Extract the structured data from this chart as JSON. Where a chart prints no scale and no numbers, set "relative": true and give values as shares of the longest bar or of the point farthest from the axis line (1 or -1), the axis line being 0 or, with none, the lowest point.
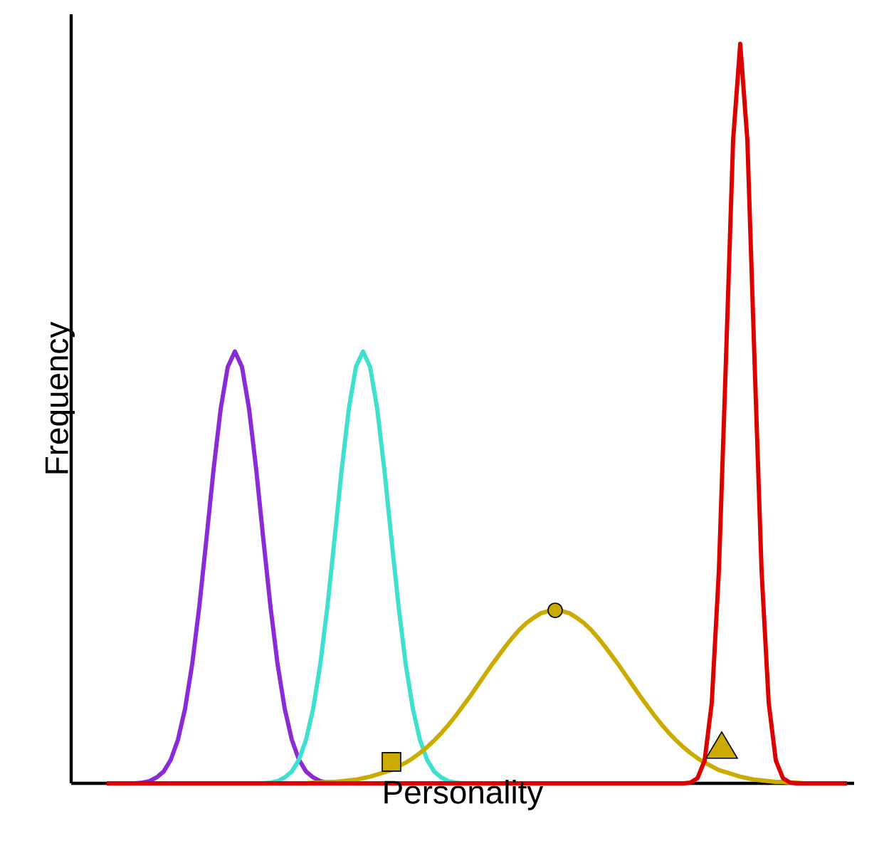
{
  "chart_data": {
    "type": "line",
    "relative": true,
    "xlabel": "Personality",
    "ylabel": "Frequency",
    "marker": "none",
    "categories": [
      null,
      null,
      null,
      null,
      null,
      null,
      null,
      null,
      null,
      null,
      null,
      null,
      null,
      null,
      null,
      null,
      null,
      null,
      null,
      null,
      null,
      null,
      null,
      null,
      null,
      null,
      null,
      null,
      null,
      null,
      null,
      null,
      null,
      null,
      null,
      null,
      null,
      null,
      null,
      null,
      null,
      null,
      null,
      null,
      null,
      null,
      null,
      null,
      null,
      null,
      null,
      null,
      null,
      null,
      null,
      null,
      null,
      null,
      null,
      null,
      null,
      null,
      null,
      null,
      null,
      null,
      null,
      null,
      null,
      null,
      null,
      null,
      null,
      null,
      null,
      null,
      null,
      null,
      null,
      null,
      null,
      null,
      null,
      null,
      null,
      null,
      null,
      null,
      null,
      null,
      null,
      null,
      null,
      null,
      null,
      null,
      null,
      null,
      null,
      null,
      null,
      null,
      null,
      null,
      null
    ],
    "series": [
      {
        "color": "#8a2bd6",
        "values": [
          null,
          null,
          null,
          null,
          0,
          0.001,
          0.003,
          0.008,
          0.016,
          0.032,
          0.059,
          0.101,
          0.161,
          0.239,
          0.33,
          0.424,
          0.506,
          0.563,
          0.584,
          0.563,
          0.506,
          0.424,
          0.33,
          0.239,
          0.161,
          0.101,
          0.059,
          0.032,
          0.016,
          0.008,
          0.003,
          0.001,
          null,
          null,
          null,
          null,
          null,
          null,
          null,
          null,
          null,
          null,
          null,
          null,
          null,
          null,
          null,
          null,
          null,
          null,
          null,
          null,
          null,
          null,
          null,
          null,
          null,
          null,
          null,
          null,
          null,
          null,
          null,
          null,
          null,
          null,
          null,
          null,
          null,
          null,
          null,
          null,
          null,
          null,
          null,
          null,
          null,
          null,
          null,
          null,
          null,
          null,
          null,
          null,
          null,
          null,
          null,
          null,
          null,
          null,
          null,
          null,
          null,
          null,
          null,
          null,
          null,
          null,
          null,
          null,
          null,
          null,
          null,
          null,
          null
        ]
      },
      {
        "color": "#40e0d0",
        "values": [
          null,
          null,
          null,
          null,
          null,
          null,
          null,
          null,
          null,
          null,
          null,
          null,
          null,
          null,
          null,
          null,
          null,
          null,
          null,
          null,
          null,
          null,
          0,
          0.001,
          0.003,
          0.008,
          0.016,
          0.032,
          0.059,
          0.101,
          0.161,
          0.239,
          0.33,
          0.424,
          0.506,
          0.563,
          0.584,
          0.563,
          0.506,
          0.424,
          0.33,
          0.239,
          0.161,
          0.101,
          0.059,
          0.032,
          0.016,
          0.008,
          0.003,
          0.001,
          0,
          null,
          null,
          null,
          null,
          null,
          null,
          null,
          null,
          null,
          null,
          null,
          null,
          null,
          null,
          null,
          null,
          null,
          null,
          null,
          null,
          null,
          null,
          null,
          null,
          null,
          null,
          null,
          null,
          null,
          null,
          null,
          null,
          null,
          null,
          null,
          null,
          null,
          null,
          null,
          null,
          null,
          null,
          null,
          null,
          null,
          null,
          null,
          null,
          null,
          null,
          null,
          null,
          null,
          null
        ]
      },
      {
        "color": "#ccab00",
        "values": [
          null,
          null,
          null,
          null,
          null,
          null,
          null,
          null,
          null,
          null,
          null,
          null,
          null,
          null,
          null,
          null,
          null,
          null,
          null,
          null,
          null,
          null,
          null,
          null,
          null,
          null,
          null,
          null,
          0,
          0.001,
          0.001,
          0.002,
          0.002,
          0.003,
          0.004,
          0.005,
          0.007,
          0.009,
          0.012,
          0.015,
          0.018,
          0.023,
          0.028,
          0.034,
          0.041,
          0.049,
          0.058,
          0.068,
          0.079,
          0.091,
          0.104,
          0.117,
          0.131,
          0.145,
          0.159,
          0.172,
          0.185,
          0.197,
          0.208,
          0.217,
          0.224,
          0.23,
          0.233,
          0.234,
          0.233,
          0.23,
          0.224,
          0.217,
          0.208,
          0.197,
          0.185,
          0.172,
          0.159,
          0.145,
          0.131,
          0.117,
          0.104,
          0.091,
          0.079,
          0.068,
          0.058,
          0.049,
          0.041,
          0.034,
          0.028,
          0.023,
          0.018,
          0.015,
          0.012,
          0.009,
          0.007,
          0.005,
          0.004,
          0.003,
          0.002,
          0.002,
          0.001,
          0.001,
          0,
          null,
          null,
          null,
          null,
          null,
          null
        ]
      },
      {
        "color": "#dd0000",
        "values": [
          0,
          0,
          0,
          0,
          0,
          0,
          0,
          0,
          0,
          0,
          0,
          0,
          0,
          0,
          0,
          0,
          0,
          0,
          0,
          0,
          0,
          0,
          0,
          0,
          0,
          0,
          0,
          0,
          0,
          0,
          0,
          0,
          0,
          0,
          0,
          0,
          0,
          0,
          0,
          0,
          0,
          0,
          0,
          0,
          0,
          0,
          0,
          0,
          0,
          0,
          0,
          0,
          0,
          0,
          0,
          0,
          0,
          0,
          0,
          0,
          0,
          0,
          0,
          0,
          0,
          0,
          0,
          0,
          0,
          0,
          0,
          0,
          0,
          0,
          0,
          0,
          0,
          0,
          0,
          0,
          0,
          0,
          0.001,
          0.007,
          0.031,
          0.109,
          0.287,
          0.574,
          0.87,
          1,
          0.87,
          0.574,
          0.287,
          0.109,
          0.031,
          0.007,
          0.001,
          0,
          0,
          0,
          0,
          0,
          0,
          0,
          0
        ]
      }
    ]
  }
}
